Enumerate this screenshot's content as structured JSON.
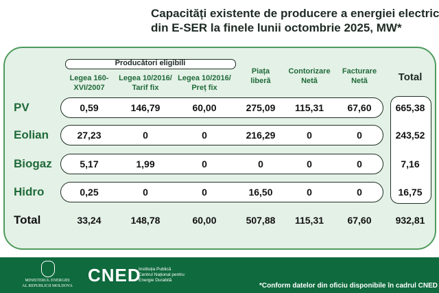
{
  "title": [
    "Capacități existente de producere a energiei electrice",
    "din E-SER la finele lunii octombrie 2025, MW*"
  ],
  "group_header": "Producători eligibili",
  "columns": [
    [
      "Legea 160-",
      "XVI/2007"
    ],
    [
      "Legea 10/2016/",
      "Tarif fix"
    ],
    [
      "Legea 10/2016/",
      "Preț fix"
    ],
    [
      "Piața",
      "liberă"
    ],
    [
      "Contorizare",
      "Netă"
    ],
    [
      "Facturare",
      "Netă"
    ],
    [
      "Total"
    ]
  ],
  "rows": [
    {
      "label": "PV",
      "values": [
        "0,59",
        "146,79",
        "60,00",
        "275,09",
        "115,31",
        "67,60",
        "665,38"
      ]
    },
    {
      "label": "Eolian",
      "values": [
        "27,23",
        "0",
        "0",
        "216,29",
        "0",
        "0",
        "243,52"
      ]
    },
    {
      "label": "Biogaz",
      "values": [
        "5,17",
        "1,99",
        "0",
        "0",
        "0",
        "0",
        "7,16"
      ]
    },
    {
      "label": "Hidro",
      "values": [
        "0,25",
        "0",
        "0",
        "16,50",
        "0",
        "0",
        "16,75"
      ]
    }
  ],
  "total_row": {
    "label": "Total",
    "values": [
      "33,24",
      "148,78",
      "60,00",
      "507,88",
      "115,31",
      "67,60",
      "932,81"
    ]
  },
  "footer": {
    "ministry": [
      "MINISTERUL ENERGIEI",
      "AL REPUBLICII MOLDOVA"
    ],
    "logo": "CNED",
    "institution": [
      "Instituția Publică",
      "Centrul Național pentru",
      "Energie Durabilă"
    ],
    "note": "*Conform datelor din oficiu disponibile în cadrul CNED"
  }
}
